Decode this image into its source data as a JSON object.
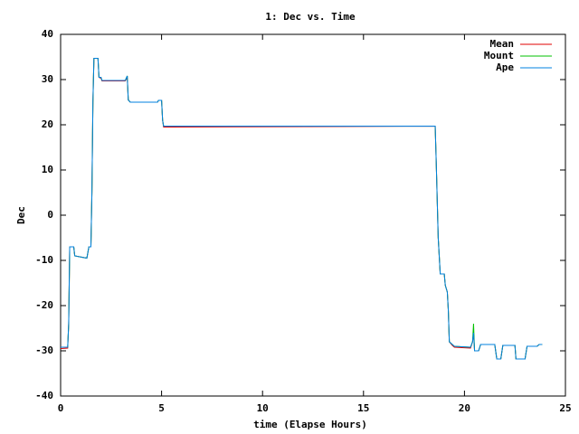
{
  "chart_data": {
    "type": "line",
    "title": "1: Dec vs. Time",
    "x_label": "time (Elapse Hours)",
    "y_label": "Dec",
    "xlim": [
      0,
      25
    ],
    "xticks": [
      0,
      5,
      10,
      15,
      20,
      25
    ],
    "ylim": [
      -40,
      40
    ],
    "yticks": [
      -40,
      -30,
      -20,
      -10,
      0,
      10,
      20,
      30,
      40
    ],
    "grid": false,
    "legend": "top-right",
    "x": [
      0,
      0.35,
      0.4,
      0.45,
      0.65,
      0.7,
      1.3,
      1.4,
      1.5,
      1.55,
      1.6,
      1.65,
      1.85,
      1.9,
      2.0,
      2.05,
      3.2,
      3.3,
      3.35,
      3.45,
      4.8,
      4.85,
      5.0,
      5.05,
      5.1,
      5.5,
      18.55,
      18.6,
      18.7,
      18.8,
      19.0,
      19.05,
      19.15,
      19.2,
      19.25,
      19.4,
      19.5,
      20.3,
      20.4,
      20.45,
      20.5,
      20.7,
      20.8,
      21.5,
      21.6,
      21.8,
      21.9,
      22.5,
      22.55,
      23.0,
      23.1,
      23.6,
      23.7,
      23.85
    ],
    "series": [
      {
        "name": "Mean",
        "color": "#e00000",
        "values": [
          -29.5,
          -29.4,
          -24,
          -7,
          -7,
          -9,
          -9.5,
          -7,
          -7,
          5,
          25,
          34.7,
          34.7,
          30.5,
          30.3,
          29.7,
          29.7,
          30.5,
          25.5,
          25,
          25,
          25.4,
          25.4,
          21,
          19.5,
          19.5,
          19.7,
          12,
          -5,
          -13,
          -13,
          -15.5,
          -17,
          -21,
          -28,
          -28.8,
          -29.2,
          -29.4,
          -28,
          -26,
          -30,
          -30,
          -28.6,
          -28.6,
          -31.8,
          -31.8,
          -28.8,
          -28.8,
          -31.8,
          -31.8,
          -29,
          -29,
          -28.6,
          -28.6
        ]
      },
      {
        "name": "Mount",
        "color": "#00c000",
        "values": [
          -29.2,
          -29.2,
          -24,
          -7,
          -7,
          -9,
          -9.5,
          -7,
          -7,
          5,
          25,
          34.7,
          34.7,
          30.5,
          30.5,
          29.8,
          29.8,
          30.8,
          25.5,
          25,
          25,
          25.4,
          25.4,
          21,
          19.7,
          19.7,
          19.7,
          12,
          -5,
          -13,
          -13,
          -15.5,
          -17,
          -21,
          -28,
          -28.6,
          -29,
          -29.2,
          -28,
          -24,
          -30,
          -30,
          -28.6,
          -28.6,
          -31.8,
          -31.8,
          -28.8,
          -28.8,
          -31.8,
          -31.8,
          -29,
          -29,
          -28.6,
          -28.6
        ]
      },
      {
        "name": "Ape",
        "color": "#0080e0",
        "values": [
          -29.2,
          -29.2,
          -24,
          -7,
          -7,
          -9,
          -9.5,
          -7,
          -7,
          5,
          25,
          34.7,
          34.7,
          30.5,
          30.5,
          29.8,
          29.8,
          30.8,
          25.5,
          25,
          25,
          25.4,
          25.4,
          21,
          19.7,
          19.7,
          19.7,
          12,
          -5,
          -13,
          -13,
          -15.5,
          -17,
          -21,
          -28,
          -28.6,
          -29,
          -29.2,
          -28,
          -26,
          -30,
          -30,
          -28.6,
          -28.6,
          -31.8,
          -31.8,
          -28.8,
          -28.8,
          -31.8,
          -31.8,
          -29,
          -29,
          -28.6,
          -28.6
        ]
      }
    ]
  }
}
